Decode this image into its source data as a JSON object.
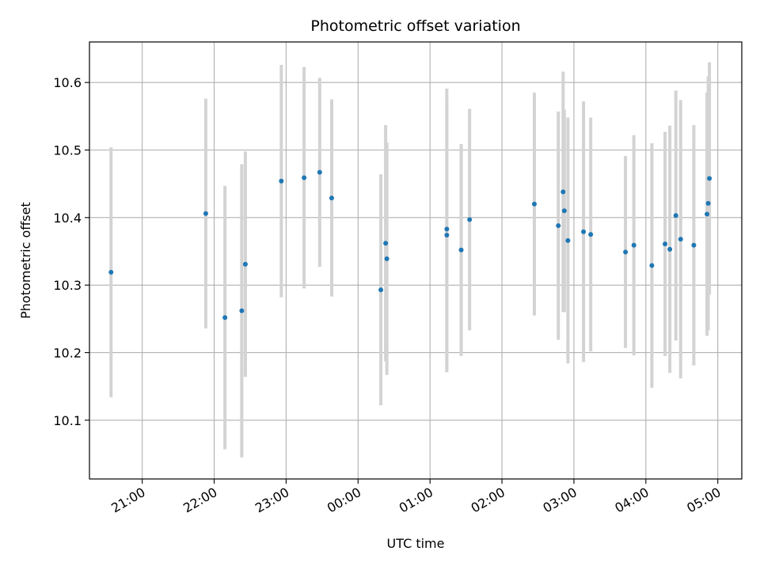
{
  "chart_data": {
    "type": "scatter",
    "title": "Photometric offset variation",
    "xlabel": "UTC time",
    "ylabel": "Photometric offset",
    "x_axis": "time (UTC, HH:MM)",
    "xlim": [
      "20:16",
      "05:20"
    ],
    "ylim": [
      10.013,
      10.66
    ],
    "x_ticks": [
      "21:00",
      "22:00",
      "23:00",
      "00:00",
      "01:00",
      "02:00",
      "03:00",
      "04:00",
      "05:00"
    ],
    "y_ticks": [
      10.1,
      10.2,
      10.3,
      10.4,
      10.5,
      10.6
    ],
    "y_tick_labels": [
      "10.1",
      "10.2",
      "10.3",
      "10.4",
      "10.5",
      "10.6"
    ],
    "grid": true,
    "point_color": "#1f77b4",
    "errorbar_color": "#d3d3d3",
    "series": [
      {
        "points": [
          {
            "t": "20:34",
            "y": 10.319,
            "err": 0.185
          },
          {
            "t": "21:53",
            "y": 10.406,
            "err": 0.17
          },
          {
            "t": "22:09",
            "y": 10.252,
            "err": 0.195
          },
          {
            "t": "22:23",
            "y": 10.262,
            "err": 0.217
          },
          {
            "t": "22:26",
            "y": 10.331,
            "err": 0.167
          },
          {
            "t": "22:56",
            "y": 10.454,
            "err": 0.172
          },
          {
            "t": "23:15",
            "y": 10.459,
            "err": 0.164
          },
          {
            "t": "23:28",
            "y": 10.467,
            "err": 0.14
          },
          {
            "t": "23:38",
            "y": 10.429,
            "err": 0.146
          },
          {
            "t": "00:19",
            "y": 10.293,
            "err": 0.171
          },
          {
            "t": "00:23",
            "y": 10.362,
            "err": 0.175
          },
          {
            "t": "00:24",
            "y": 10.339,
            "err": 0.172
          },
          {
            "t": "01:14",
            "y": 10.383,
            "err": 0.208
          },
          {
            "t": "01:14",
            "y": 10.374,
            "err": 0.203
          },
          {
            "t": "01:26",
            "y": 10.352,
            "err": 0.157
          },
          {
            "t": "01:33",
            "y": 10.397,
            "err": 0.164
          },
          {
            "t": "02:27",
            "y": 10.42,
            "err": 0.165
          },
          {
            "t": "02:47",
            "y": 10.388,
            "err": 0.169
          },
          {
            "t": "02:51",
            "y": 10.438,
            "err": 0.178
          },
          {
            "t": "02:52",
            "y": 10.41,
            "err": 0.15
          },
          {
            "t": "02:55",
            "y": 10.366,
            "err": 0.182
          },
          {
            "t": "03:08",
            "y": 10.379,
            "err": 0.193
          },
          {
            "t": "03:14",
            "y": 10.375,
            "err": 0.173
          },
          {
            "t": "03:43",
            "y": 10.349,
            "err": 0.142
          },
          {
            "t": "03:50",
            "y": 10.359,
            "err": 0.163
          },
          {
            "t": "04:05",
            "y": 10.329,
            "err": 0.181
          },
          {
            "t": "04:16",
            "y": 10.361,
            "err": 0.166
          },
          {
            "t": "04:20",
            "y": 10.353,
            "err": 0.183
          },
          {
            "t": "04:25",
            "y": 10.403,
            "err": 0.185
          },
          {
            "t": "04:29",
            "y": 10.368,
            "err": 0.206
          },
          {
            "t": "04:40",
            "y": 10.359,
            "err": 0.178
          },
          {
            "t": "04:51",
            "y": 10.405,
            "err": 0.18
          },
          {
            "t": "04:52",
            "y": 10.421,
            "err": 0.188
          },
          {
            "t": "04:53",
            "y": 10.458,
            "err": 0.172
          }
        ]
      }
    ]
  }
}
